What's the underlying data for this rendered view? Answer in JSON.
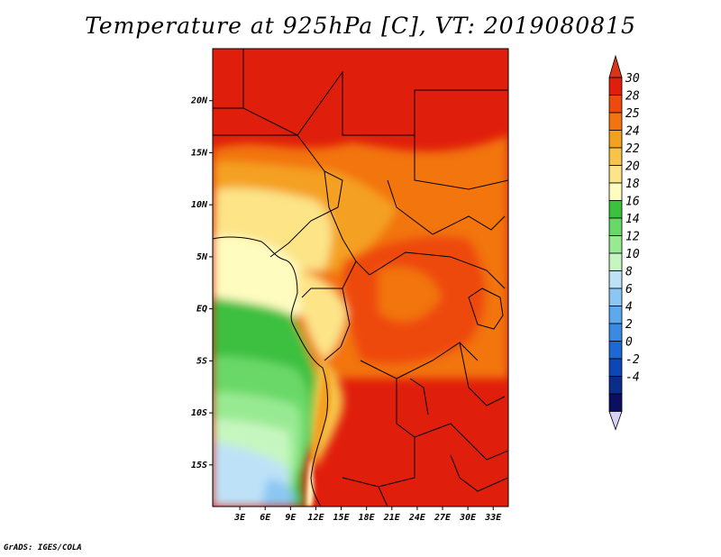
{
  "title": "Temperature at 925hPa [C], VT: 2019080815",
  "credit": "GrADS: IGES/COLA",
  "lat_axis": {
    "labels": [
      "20N",
      "15N",
      "10N",
      "5N",
      "EQ",
      "5S",
      "10S",
      "15S"
    ],
    "values": [
      20,
      15,
      10,
      5,
      0,
      -5,
      -10,
      -15
    ],
    "range": [
      -19,
      25
    ]
  },
  "lon_axis": {
    "labels": [
      "3E",
      "6E",
      "9E",
      "12E",
      "15E",
      "18E",
      "21E",
      "24E",
      "27E",
      "30E",
      "33E"
    ],
    "values": [
      3,
      6,
      9,
      12,
      15,
      18,
      21,
      24,
      27,
      30,
      33
    ],
    "range": [
      0,
      35
    ]
  },
  "colorbar": {
    "labels": [
      "30",
      "28",
      "25",
      "24",
      "22",
      "20",
      "18",
      "16",
      "14",
      "12",
      "10",
      "8",
      "6",
      "4",
      "2",
      "0",
      "-2",
      "-4"
    ],
    "colors": [
      "#e01e0c",
      "#ee4a10",
      "#f27410",
      "#f4a020",
      "#f7c44a",
      "#fce487",
      "#fefcbf",
      "#3cc040",
      "#6ad868",
      "#98ea92",
      "#c6f6c0",
      "#bde2f8",
      "#8cc7f3",
      "#5ea9ee",
      "#3a8ae4",
      "#1e68d6",
      "#0f46b6",
      "#0a2d8c",
      "#0a0f60"
    ],
    "top_cap_color": "#d8361a",
    "bottom_cap_color": "#d8d2f8"
  }
}
